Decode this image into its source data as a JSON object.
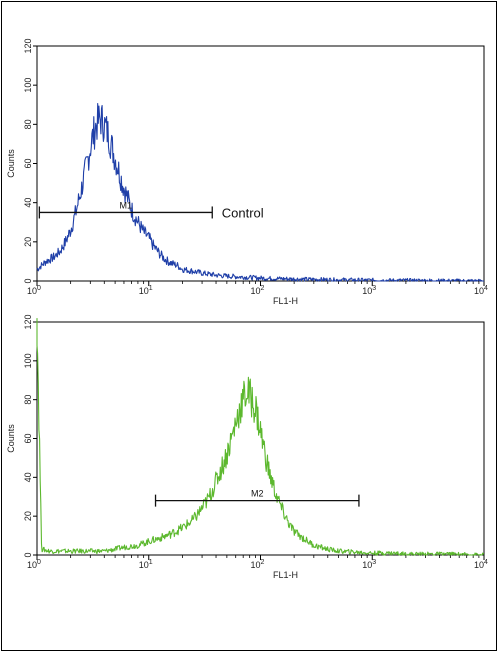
{
  "chart_data": [
    {
      "type": "line",
      "title": "",
      "xlabel": "FL1-H",
      "ylabel": "Counts",
      "x_scale": "log",
      "xlim": [
        1,
        10000
      ],
      "ylim": [
        0,
        120
      ],
      "x_ticks": [
        {
          "value": 1,
          "base": "10",
          "exp": "0"
        },
        {
          "value": 10,
          "base": "10",
          "exp": "1"
        },
        {
          "value": 100,
          "base": "10",
          "exp": "2"
        },
        {
          "value": 1000,
          "base": "10",
          "exp": "3"
        },
        {
          "value": 10000,
          "base": "10",
          "exp": "4"
        }
      ],
      "y_ticks": [
        0,
        20,
        40,
        60,
        80,
        100,
        120
      ],
      "grid": false,
      "series": [
        {
          "name": "Control",
          "color": "#1f3fa8",
          "x": [
            1.0,
            1.1,
            1.2,
            1.4,
            1.6,
            1.8,
            2.0,
            2.2,
            2.5,
            2.8,
            3.1,
            3.4,
            3.7,
            4.0,
            4.4,
            4.8,
            5.3,
            5.8,
            6.5,
            7.2,
            8.0,
            9.0,
            10,
            11,
            12.5,
            14,
            16,
            18,
            20,
            25,
            30,
            40,
            50,
            70,
            100,
            150,
            200,
            300,
            500,
            700,
            1000,
            1500,
            2000,
            3000,
            5000,
            10000
          ],
          "y": [
            6,
            8,
            10,
            12,
            15,
            20,
            26,
            34,
            47,
            60,
            72,
            80,
            83,
            80,
            74,
            66,
            58,
            50,
            42,
            35,
            30,
            25,
            22,
            18,
            14,
            11,
            9,
            8,
            6,
            5,
            4,
            3,
            2.5,
            2,
            1.5,
            1.2,
            1,
            0.8,
            0.6,
            0.5,
            0.4,
            0.3,
            0.3,
            0.2,
            0.1,
            0
          ]
        }
      ],
      "annotations": [
        {
          "label": "M1",
          "x_start": 1.05,
          "x_end": 37,
          "y": 35
        },
        {
          "label": "Control",
          "x": 45,
          "y": 35
        }
      ]
    },
    {
      "type": "line",
      "title": "",
      "xlabel": "FL1-H",
      "ylabel": "Counts",
      "x_scale": "log",
      "xlim": [
        1,
        10000
      ],
      "ylim": [
        0,
        120
      ],
      "x_ticks": [
        {
          "value": 1,
          "base": "10",
          "exp": "0"
        },
        {
          "value": 10,
          "base": "10",
          "exp": "1"
        },
        {
          "value": 100,
          "base": "10",
          "exp": "2"
        },
        {
          "value": 1000,
          "base": "10",
          "exp": "3"
        },
        {
          "value": 10000,
          "base": "10",
          "exp": "4"
        }
      ],
      "y_ticks": [
        0,
        20,
        40,
        60,
        80,
        100,
        120
      ],
      "grid": false,
      "series": [
        {
          "name": "",
          "color": "#5cb82e",
          "x": [
            1.0,
            1.1,
            1.3,
            1.6,
            2.0,
            2.5,
            3.0,
            4.0,
            5.0,
            6.0,
            8.0,
            10,
            13,
            16,
            20,
            25,
            30,
            35,
            40,
            45,
            50,
            55,
            60,
            65,
            70,
            75,
            80,
            90,
            100,
            110,
            120,
            140,
            160,
            180,
            200,
            250,
            300,
            400,
            500,
            700,
            1000,
            1500,
            2000,
            3000,
            5000,
            10000
          ],
          "y": [
            122,
            3,
            2,
            2,
            2,
            2,
            2,
            2,
            3,
            4,
            5,
            7,
            9,
            11,
            14,
            18,
            24,
            30,
            38,
            45,
            52,
            60,
            68,
            75,
            80,
            84,
            82,
            76,
            64,
            52,
            42,
            30,
            22,
            16,
            12,
            8,
            5,
            3,
            2,
            1.5,
            1,
            1,
            0.5,
            0.5,
            0.5,
            0
          ]
        }
      ],
      "annotations": [
        {
          "label": "M2",
          "x_start": 11.5,
          "x_end": 760,
          "y": 28
        }
      ]
    }
  ]
}
